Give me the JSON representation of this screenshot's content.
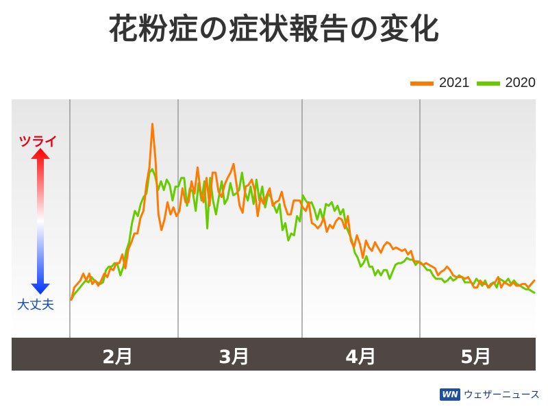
{
  "title": "花粉症の症状報告の変化",
  "legend": {
    "s2021": "2021",
    "s2020": "2020"
  },
  "scale": {
    "top_label": "ツライ",
    "bottom_label": "大丈夫"
  },
  "months": [
    "2月",
    "3月",
    "4月",
    "5月"
  ],
  "logo": {
    "mark": "WN",
    "text": "ウェザーニュース"
  },
  "colors": {
    "s2021": "#ff7a00",
    "s2020": "#66cc00",
    "axis_bar": "#4f4743"
  },
  "chart_data": {
    "type": "line",
    "x_unit": "day",
    "x_start": "Jan 20",
    "ylim": [
      0,
      100
    ],
    "month_ticks": [
      "2月",
      "3月",
      "4月",
      "5月"
    ],
    "series": [
      {
        "name": "2021",
        "color": "#ff7a00",
        "values": [
          1,
          8,
          10,
          12,
          16,
          12,
          16,
          10,
          12,
          9,
          12,
          16,
          14,
          19,
          18,
          22,
          22,
          27,
          19,
          30,
          34,
          39,
          39,
          48,
          52,
          67,
          77,
          102,
          82,
          50,
          41,
          47,
          57,
          50,
          54,
          49,
          52,
          65,
          57,
          57,
          69,
          62,
          77,
          63,
          57,
          71,
          55,
          74,
          74,
          63,
          60,
          67,
          71,
          74,
          79,
          67,
          55,
          51,
          66,
          67,
          70,
          64,
          49,
          60,
          56,
          61,
          65,
          55,
          57,
          58,
          63,
          55,
          50,
          50,
          58,
          58,
          58,
          54,
          52,
          57,
          45,
          44,
          42,
          44,
          48,
          40,
          44,
          42,
          46,
          48,
          47,
          42,
          49,
          35,
          31,
          38,
          33,
          25,
          35,
          31,
          29,
          34,
          31,
          28,
          32,
          34,
          33,
          30,
          31,
          30,
          29,
          30,
          27,
          29,
          23,
          23,
          22,
          21,
          22,
          21,
          20,
          19,
          15,
          17,
          18,
          20,
          18,
          15,
          14,
          14,
          14,
          13,
          14,
          11,
          8,
          8,
          12,
          10,
          10,
          8,
          10,
          11,
          14,
          8,
          11,
          10,
          9,
          11,
          9,
          9,
          10,
          10,
          8,
          10,
          12
        ]
      },
      {
        "name": "2020",
        "color": "#66cc00",
        "values": [
          1,
          4,
          6,
          8,
          10,
          12,
          11,
          14,
          12,
          11,
          10,
          11,
          18,
          20,
          20,
          22,
          21,
          15,
          20,
          29,
          34,
          45,
          52,
          49,
          56,
          60,
          62,
          74,
          76,
          72,
          64,
          69,
          64,
          70,
          67,
          58,
          66,
          66,
          71,
          71,
          55,
          65,
          63,
          52,
          68,
          58,
          69,
          42,
          71,
          58,
          50,
          60,
          69,
          56,
          59,
          68,
          61,
          62,
          64,
          74,
          63,
          58,
          66,
          56,
          70,
          58,
          66,
          54,
          62,
          60,
          55,
          51,
          56,
          41,
          45,
          35,
          39,
          38,
          49,
          46,
          61,
          58,
          56,
          57,
          53,
          47,
          53,
          47,
          56,
          55,
          57,
          52,
          55,
          50,
          53,
          43,
          39,
          35,
          28,
          25,
          20,
          22,
          26,
          20,
          20,
          15,
          18,
          15,
          18,
          18,
          13,
          17,
          21,
          22,
          22,
          23,
          25,
          24,
          24,
          21,
          23,
          22,
          20,
          18,
          18,
          15,
          13,
          13,
          13,
          11,
          12,
          14,
          12,
          13,
          15,
          14,
          11,
          11,
          11,
          10,
          13,
          11,
          9,
          12,
          8,
          10,
          11,
          8,
          13,
          12,
          11,
          13,
          10,
          12,
          10,
          9,
          8,
          7,
          7,
          6,
          5
        ]
      }
    ]
  }
}
